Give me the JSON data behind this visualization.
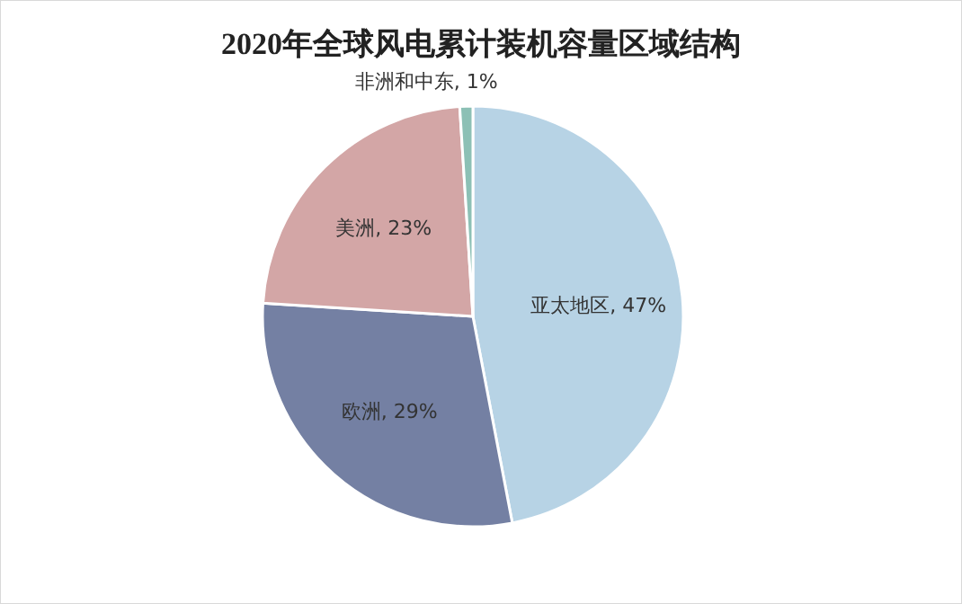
{
  "chart_data": {
    "type": "pie",
    "title": "2020年全球风电累计装机容量区域结构",
    "categories": [
      "亚太地区",
      "欧洲",
      "美洲",
      "非洲和中东"
    ],
    "values": [
      47,
      29,
      23,
      1
    ],
    "value_labels": [
      "47%",
      "29%",
      "23%",
      "1%"
    ],
    "colors": [
      "#b7d3e5",
      "#7480a3",
      "#d3a6a6",
      "#8cc0b5"
    ]
  }
}
